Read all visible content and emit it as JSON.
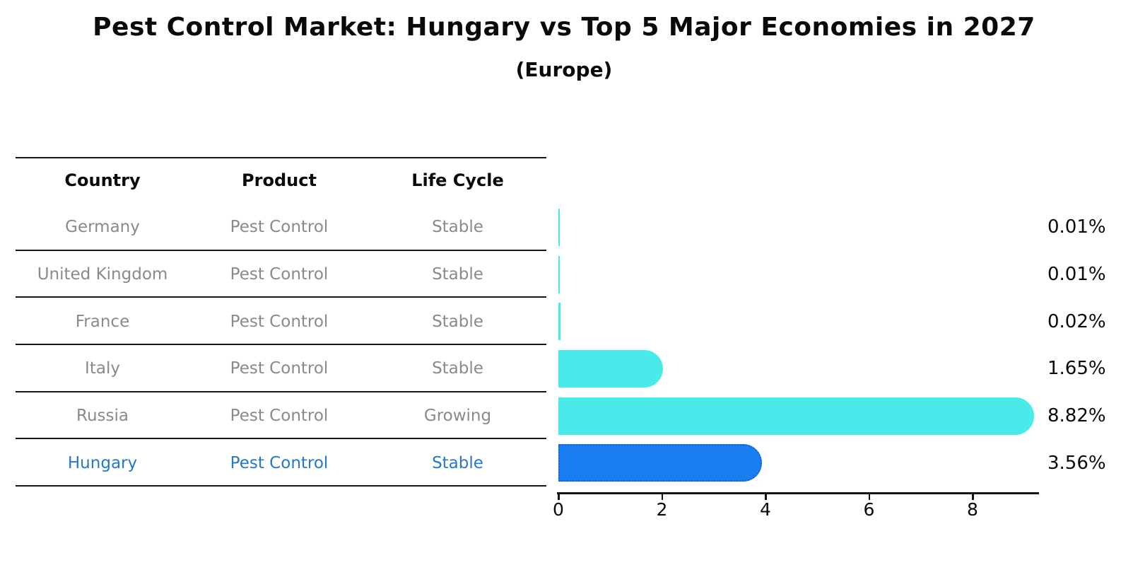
{
  "header": {
    "title": "Pest Control Market: Hungary vs Top 5 Major Economies in 2027",
    "subtitle": "(Europe)"
  },
  "table": {
    "columns": [
      "Country",
      "Product",
      "Life Cycle"
    ],
    "rows": [
      {
        "country": "Germany",
        "product": "Pest Control",
        "life_cycle": "Stable",
        "highlight": false
      },
      {
        "country": "United Kingdom",
        "product": "Pest Control",
        "life_cycle": "Stable",
        "highlight": false
      },
      {
        "country": "France",
        "product": "Pest Control",
        "life_cycle": "Stable",
        "highlight": false
      },
      {
        "country": "Italy",
        "product": "Pest Control",
        "life_cycle": "Stable",
        "highlight": false
      },
      {
        "country": "Russia",
        "product": "Pest Control",
        "life_cycle": "Growing",
        "highlight": false
      },
      {
        "country": "Hungary",
        "product": "Pest Control",
        "life_cycle": "Stable",
        "highlight": true
      }
    ]
  },
  "chart_data": {
    "type": "bar",
    "orientation": "horizontal",
    "title": "Pest Control Market: Hungary vs Top 5 Major Economies in 2027",
    "subtitle": "(Europe)",
    "categories": [
      "Germany",
      "United Kingdom",
      "France",
      "Italy",
      "Russia",
      "Hungary"
    ],
    "values": [
      0.01,
      0.01,
      0.02,
      1.65,
      8.82,
      3.56
    ],
    "value_labels": [
      "0.01%",
      "0.01%",
      "0.02%",
      "1.65%",
      "8.82%",
      "3.56%"
    ],
    "highlight_category": "Hungary",
    "xticks": [
      0,
      2,
      4,
      6,
      8
    ],
    "xlim": [
      0,
      9.3
    ],
    "grid": false,
    "legend": false,
    "bar_color": "#48eaea",
    "highlight_bar_color": "#1a7ef0",
    "highlight_bar_border_color": "#1461cf",
    "highlight_text_color": "#2678c9",
    "row_text_color": "#8a8a8a"
  }
}
